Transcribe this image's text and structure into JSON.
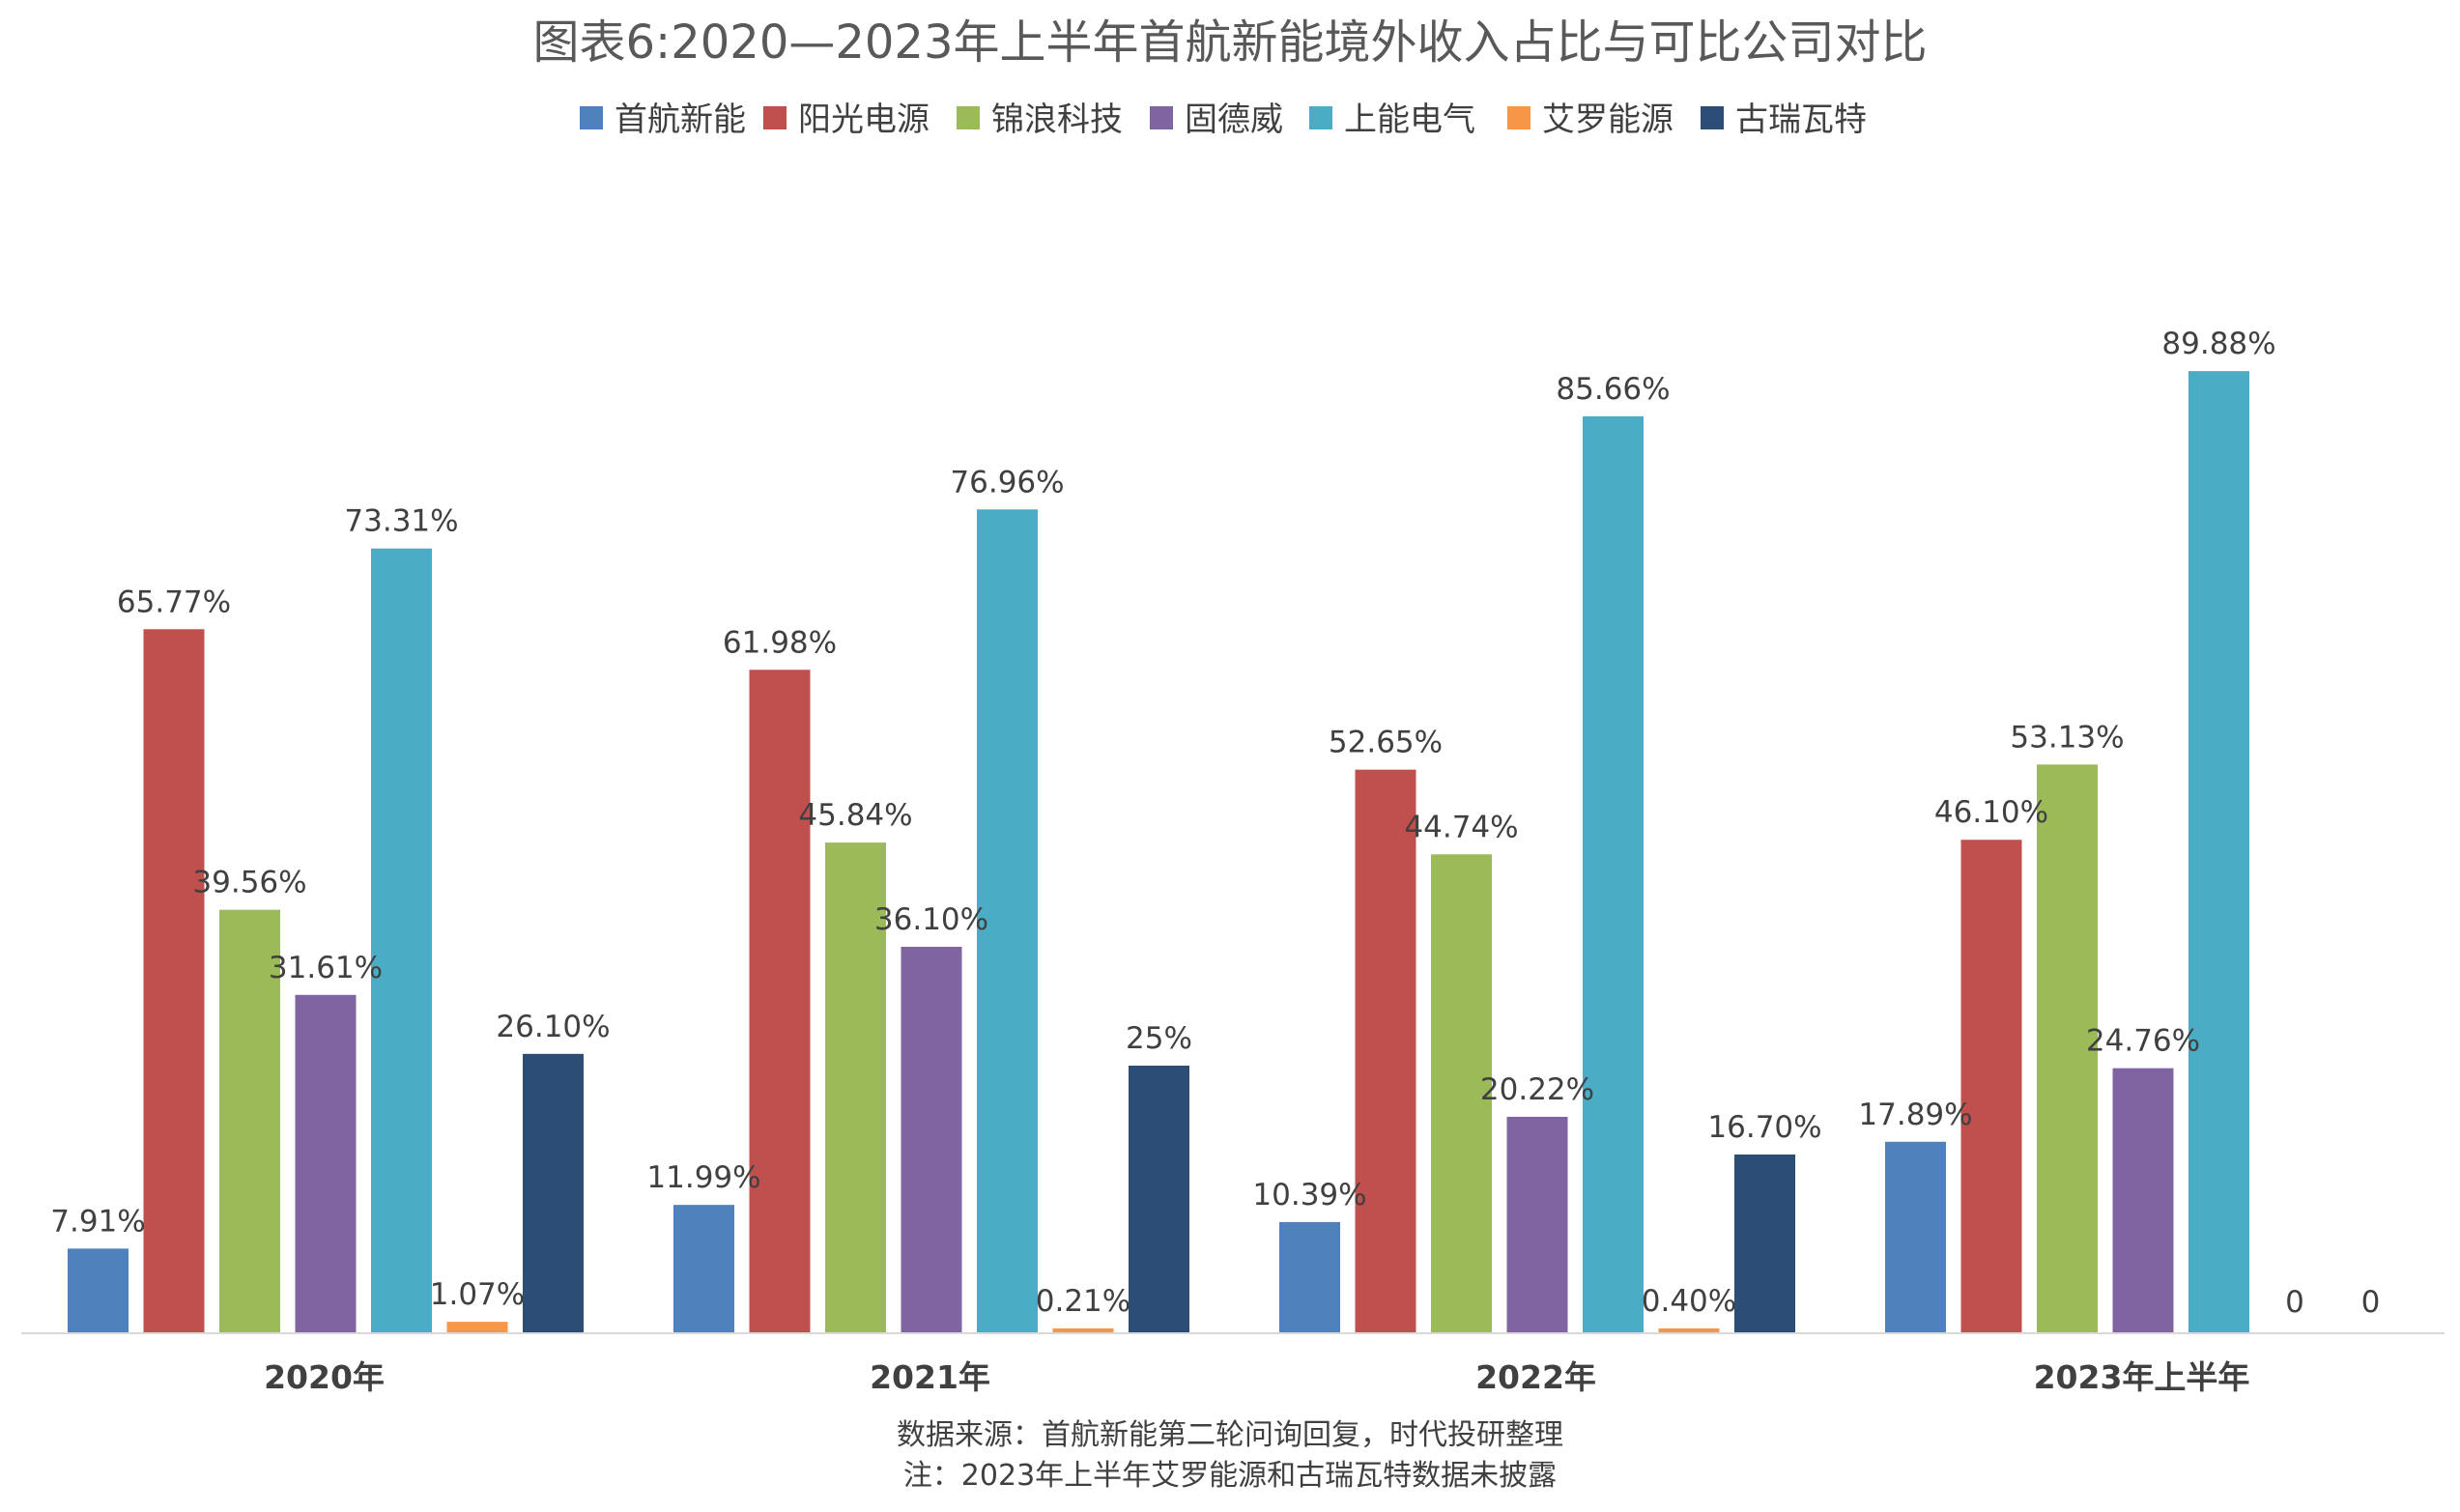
{
  "chart_data": {
    "type": "bar",
    "title": "图表6:2020—2023年上半年首航新能境外收入占比与可比公司对比",
    "categories": [
      "2020年",
      "2021年",
      "2022年",
      "2023年上半年"
    ],
    "series": [
      {
        "name": "首航新能",
        "color": "#4F81BD",
        "values": [
          7.91,
          11.99,
          10.39,
          17.89
        ],
        "labels": [
          "7.91%",
          "11.99%",
          "10.39%",
          "17.89%"
        ]
      },
      {
        "name": "阳光电源",
        "color": "#C0504D",
        "values": [
          65.77,
          61.98,
          52.65,
          46.1
        ],
        "labels": [
          "65.77%",
          "61.98%",
          "52.65%",
          "46.10%"
        ]
      },
      {
        "name": "锦浪科技",
        "color": "#9BBB59",
        "values": [
          39.56,
          45.84,
          44.74,
          53.13
        ],
        "labels": [
          "39.56%",
          "45.84%",
          "44.74%",
          "53.13%"
        ]
      },
      {
        "name": "固德威",
        "color": "#8064A2",
        "values": [
          31.61,
          36.1,
          20.22,
          24.76
        ],
        "labels": [
          "31.61%",
          "36.10%",
          "20.22%",
          "24.76%"
        ]
      },
      {
        "name": "上能电气",
        "color": "#4BACC6",
        "values": [
          73.31,
          76.96,
          85.66,
          89.88
        ],
        "labels": [
          "73.31%",
          "76.96%",
          "85.66%",
          "89.88%"
        ]
      },
      {
        "name": "艾罗能源",
        "color": "#F79646",
        "values": [
          1.07,
          0.21,
          0.4,
          0
        ],
        "labels": [
          "1.07%",
          "0.21%",
          "0.40%",
          "0"
        ]
      },
      {
        "name": "古瑞瓦特",
        "color": "#2C4D75",
        "values": [
          26.1,
          25,
          16.7,
          0
        ],
        "labels": [
          "26.10%",
          "25%",
          "16.70%",
          "0"
        ]
      }
    ],
    "ylim": [
      0,
      100
    ],
    "grid": false,
    "legend": "top"
  },
  "source_note": "数据来源：首航新能第二轮问询回复，时代投研整理",
  "footnote": "注：2023年上半年艾罗能源和古瑞瓦特数据未披露"
}
